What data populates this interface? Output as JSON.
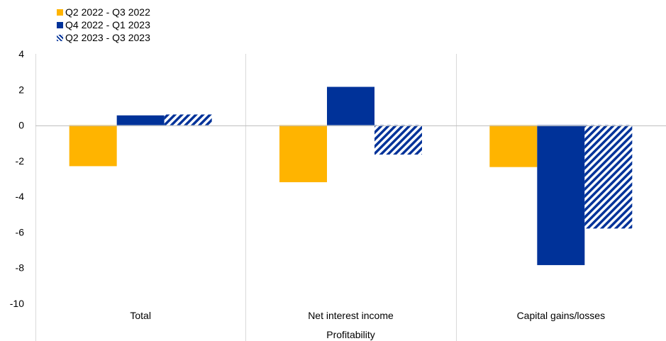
{
  "chart_data": {
    "type": "bar",
    "categories": [
      "Total",
      "Net interest income",
      "Capital gains/losses"
    ],
    "category_group_label": "Profitability",
    "series": [
      {
        "name": "Q2 2022 - Q3 2022",
        "values": [
          -2.3,
          -3.2,
          -2.35
        ],
        "color": "#ffb400",
        "pattern": "solid"
      },
      {
        "name": "Q4 2022 - Q1 2023",
        "values": [
          0.55,
          2.15,
          -7.85
        ],
        "color": "#003299",
        "pattern": "solid"
      },
      {
        "name": "Q2 2023 - Q3 2023",
        "values": [
          0.6,
          -1.65,
          -5.8
        ],
        "color": "#003299",
        "pattern": "diagonal-hatch"
      }
    ],
    "ylim": [
      -10,
      4
    ],
    "yticks": [
      "4",
      "2",
      "0",
      "-2",
      "-4",
      "-6",
      "-8",
      "-10"
    ],
    "grid": "vertical category separators",
    "legend_position": "top-left"
  }
}
